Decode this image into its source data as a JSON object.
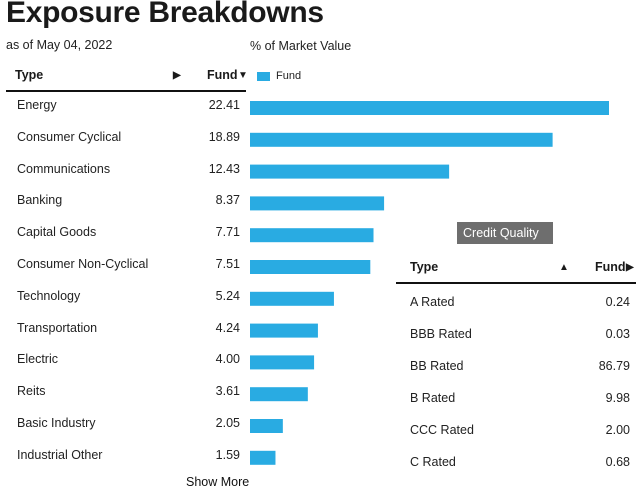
{
  "header": {
    "title": "Exposure Breakdowns",
    "as_of": "as of May 04, 2022",
    "chart_label": "% of Market Value"
  },
  "legend": {
    "label": "Fund",
    "color": "#29abe2"
  },
  "table": {
    "col_type": "Type",
    "col_fund": "Fund",
    "sort_type_icon": "▶",
    "sort_fund_icon": "▼"
  },
  "show_more": "Show More",
  "chart_data": {
    "type": "bar",
    "orientation": "horizontal",
    "series": [
      {
        "name": "Fund",
        "color": "#29abe2"
      }
    ],
    "categories": [
      "Energy",
      "Consumer Cyclical",
      "Communications",
      "Banking",
      "Capital Goods",
      "Consumer Non-Cyclical",
      "Technology",
      "Transportation",
      "Electric",
      "Reits",
      "Basic Industry",
      "Industrial Other"
    ],
    "values": [
      22.41,
      18.89,
      12.43,
      8.37,
      7.71,
      7.51,
      5.24,
      4.24,
      4.0,
      3.61,
      2.05,
      1.59
    ],
    "value_labels": [
      "22.41",
      "18.89",
      "12.43",
      "8.37",
      "7.71",
      "7.51",
      "5.24",
      "4.24",
      "4.00",
      "3.61",
      "2.05",
      "1.59"
    ],
    "xlim": [
      0,
      22.41
    ]
  },
  "credit_quality": {
    "button_label": "Credit Quality",
    "col_type": "Type",
    "col_fund": "Fund",
    "sort_type_icon": "▲",
    "sort_fund_icon": "▶",
    "rows": [
      {
        "label": "A Rated",
        "value": "0.24"
      },
      {
        "label": "BBB Rated",
        "value": "0.03"
      },
      {
        "label": "BB Rated",
        "value": "86.79"
      },
      {
        "label": "B Rated",
        "value": "9.98"
      },
      {
        "label": "CCC Rated",
        "value": "2.00"
      },
      {
        "label": "C Rated",
        "value": "0.68"
      }
    ]
  }
}
